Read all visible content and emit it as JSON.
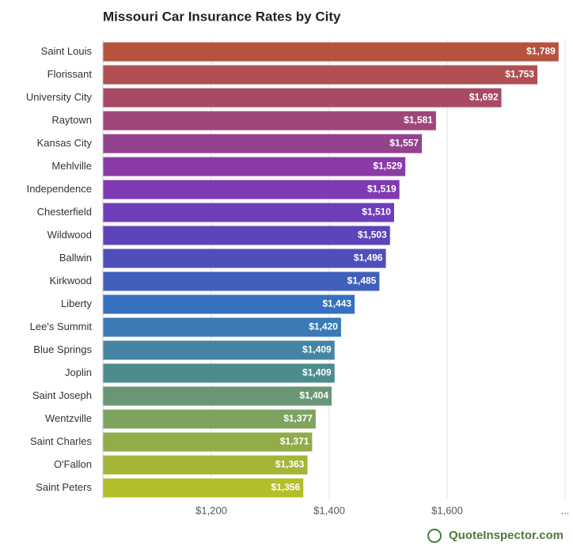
{
  "chart_data": {
    "type": "bar",
    "orientation": "horizontal",
    "title": "Missouri Car Insurance Rates by City",
    "categories": [
      "Saint Louis",
      "Florissant",
      "University City",
      "Raytown",
      "Kansas City",
      "Mehlville",
      "Independence",
      "Chesterfield",
      "Wildwood",
      "Ballwin",
      "Kirkwood",
      "Liberty",
      "Lee's Summit",
      "Blue Springs",
      "Joplin",
      "Saint Joseph",
      "Wentzville",
      "Saint Charles",
      "O'Fallon",
      "Saint Peters"
    ],
    "values": [
      1789,
      1753,
      1692,
      1581,
      1557,
      1529,
      1519,
      1510,
      1503,
      1496,
      1485,
      1443,
      1420,
      1409,
      1409,
      1404,
      1377,
      1371,
      1363,
      1356
    ],
    "value_labels": [
      "$1,789",
      "$1,753",
      "$1,692",
      "$1,581",
      "$1,557",
      "$1,529",
      "$1,519",
      "$1,510",
      "$1,503",
      "$1,496",
      "$1,485",
      "$1,443",
      "$1,420",
      "$1,409",
      "$1,409",
      "$1,404",
      "$1,377",
      "$1,371",
      "$1,363",
      "$1,356"
    ],
    "colors": [
      "#b5533f",
      "#b04f52",
      "#a84a66",
      "#9e467a",
      "#94418e",
      "#8a3ba6",
      "#7f3ab3",
      "#6e3dba",
      "#5e44ba",
      "#4f4fbb",
      "#4060bb",
      "#3670c0",
      "#3a7ab5",
      "#4385a2",
      "#4c8c8e",
      "#6a9675",
      "#7ea35f",
      "#91ad4a",
      "#a3b637",
      "#b4be2a"
    ],
    "xlim": [
      1016,
      1800
    ],
    "xticks": [
      {
        "value": 1200,
        "label": "$1,200"
      },
      {
        "value": 1400,
        "label": "$1,400"
      },
      {
        "value": 1600,
        "label": "$1,600"
      },
      {
        "value": 1800,
        "label": "..."
      }
    ],
    "grid": true,
    "credit": "QuoteInspector.com"
  }
}
